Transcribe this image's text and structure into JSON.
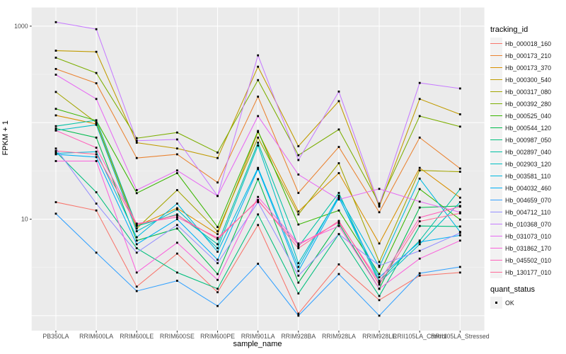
{
  "figure": {
    "background": "#FFFFFF",
    "panel_background": "#EBEBEB",
    "gridline_major_color": "#FFFFFF",
    "gridline_minor_color": "#F5F5F5",
    "tick_color": "#333333",
    "tick_label_color": "#4D4D4D",
    "point_color": "#000000"
  },
  "chart_data": {
    "type": "line",
    "title": "",
    "xlabel": "sample_name",
    "ylabel": "FPKM + 1",
    "x_categories": [
      "PB350LA",
      "RRIM600LA",
      "RRIM600LE",
      "RRIM600SE",
      "RRIM600PE",
      "RRIM901LA",
      "RRIM928BA",
      "RRIM928LA",
      "RRIM928LE",
      "RRII105LA_Control",
      "RRII105LA_Stressed"
    ],
    "y_scale": "log10",
    "ylim": [
      0.7,
      1560
    ],
    "y_axis_ticks": [
      {
        "label": "1000",
        "value": 1000
      },
      {
        "label": "10",
        "value": 10
      }
    ],
    "y_major_gridlines": [
      1000,
      100,
      10,
      1
    ],
    "y_minor_gridlines": [
      316.23,
      31.62,
      3.16
    ],
    "grid": true,
    "legend_position": "right",
    "point_shape": "black-square",
    "series": [
      {
        "tracking_id": "Hb_000018_160",
        "color": "#F8766D",
        "values": [
          15,
          12.3,
          2.0,
          4.4,
          1.75,
          8.7,
          1.05,
          3.4,
          1.45,
          2.6,
          2.8
        ]
      },
      {
        "tracking_id": "Hb_000173_210",
        "color": "#EA8331",
        "values": [
          360,
          256,
          43,
          47,
          24,
          186,
          18.7,
          56,
          11.8,
          70,
          33.5
        ]
      },
      {
        "tracking_id": "Hb_000173_370",
        "color": "#D89000",
        "values": [
          119,
          97,
          8.5,
          13,
          7.0,
          80,
          12,
          30,
          5.6,
          34,
          16.7
        ]
      },
      {
        "tracking_id": "Hb_000300_540",
        "color": "#C09B00",
        "values": [
          557,
          542,
          62,
          54,
          43,
          380,
          57,
          167,
          13.5,
          176,
          122
        ]
      },
      {
        "tracking_id": "Hb_000317_080",
        "color": "#A3A500",
        "values": [
          208,
          100,
          8.0,
          20,
          7.5,
          70,
          11.2,
          38,
          3.6,
          32,
          31
        ]
      },
      {
        "tracking_id": "Hb_000392_280",
        "color": "#7CAE00",
        "values": [
          471,
          327,
          69,
          79,
          49,
          276,
          46,
          85,
          14.5,
          117,
          91
        ]
      },
      {
        "tracking_id": "Hb_000525_040",
        "color": "#39B600",
        "values": [
          139,
          105,
          18.6,
          30,
          8.3,
          82,
          8.8,
          12.3,
          2.7,
          20.5,
          9.9
        ]
      },
      {
        "tracking_id": "Hb_000544_120",
        "color": "#00BB4E",
        "values": [
          87,
          70,
          6.0,
          8.0,
          2.7,
          26,
          2.2,
          9.0,
          1.9,
          13.2,
          13.7
        ]
      },
      {
        "tracking_id": "Hb_000987_050",
        "color": "#00BF7D",
        "values": [
          50,
          19,
          5.0,
          2.8,
          1.9,
          11.2,
          1.7,
          7.0,
          1.6,
          8.5,
          8.4
        ]
      },
      {
        "tracking_id": "Hb_002897_040",
        "color": "#00C1A3",
        "values": [
          92,
          106,
          8.5,
          11.2,
          5.5,
          62,
          5.2,
          18.7,
          2.3,
          6.0,
          20.5
        ]
      },
      {
        "tracking_id": "Hb_002903_120",
        "color": "#00BFC4",
        "values": [
          83,
          95,
          7.5,
          12.6,
          5.0,
          58,
          3.5,
          17,
          2.2,
          5.5,
          15
        ]
      },
      {
        "tracking_id": "Hb_003581_110",
        "color": "#00BAE0",
        "values": [
          48,
          50,
          6.5,
          14.5,
          4.6,
          34,
          3.2,
          17.5,
          3.2,
          26.3,
          7.4
        ]
      },
      {
        "tracking_id": "Hb_004032_460",
        "color": "#00B0F6",
        "values": [
          47,
          44,
          5.5,
          10,
          3.8,
          33,
          2.9,
          16.7,
          2.5,
          5.8,
          6.8
        ]
      },
      {
        "tracking_id": "Hb_004659_070",
        "color": "#35A2FF",
        "values": [
          11.4,
          4.5,
          1.8,
          2.3,
          1.26,
          3.45,
          1.0,
          2.7,
          1.0,
          2.75,
          3.2
        ]
      },
      {
        "tracking_id": "Hb_004712_110",
        "color": "#9590FF",
        "values": [
          54,
          14.5,
          4.5,
          8.7,
          3.5,
          15,
          2.6,
          7.0,
          3.3,
          4.7,
          7.2
        ]
      },
      {
        "tracking_id": "Hb_010368_070",
        "color": "#C77CFF",
        "values": [
          1100,
          930,
          65,
          67,
          17.4,
          498,
          41,
          210,
          14.0,
          258,
          226
        ]
      },
      {
        "tracking_id": "Hb_031073_010",
        "color": "#E76BF3",
        "values": [
          314,
          176,
          20,
          32,
          17.4,
          117,
          29,
          16,
          20.6,
          15.2,
          11.8
        ]
      },
      {
        "tracking_id": "Hb_031862_170",
        "color": "#FA62DB",
        "values": [
          40,
          40,
          2.8,
          5.7,
          2.35,
          17,
          5.6,
          8.5,
          1.9,
          3.9,
          6.0
        ]
      },
      {
        "tracking_id": "Hb_045502_010",
        "color": "#FF62BC",
        "values": [
          83,
          55,
          9.0,
          10.5,
          6.4,
          15.5,
          5.4,
          9.3,
          2.25,
          10.4,
          13.5
        ]
      },
      {
        "tracking_id": "Hb_130177_010",
        "color": "#FF6A98",
        "values": [
          51,
          47,
          8.8,
          11,
          6.2,
          15.8,
          5.0,
          9.6,
          2.1,
          9.5,
          11.5
        ]
      }
    ]
  },
  "legend": {
    "tracking": {
      "title": "tracking_id"
    },
    "quant": {
      "title": "quant_status",
      "items": [
        {
          "label": "OK",
          "marker": "black-square"
        }
      ]
    }
  }
}
